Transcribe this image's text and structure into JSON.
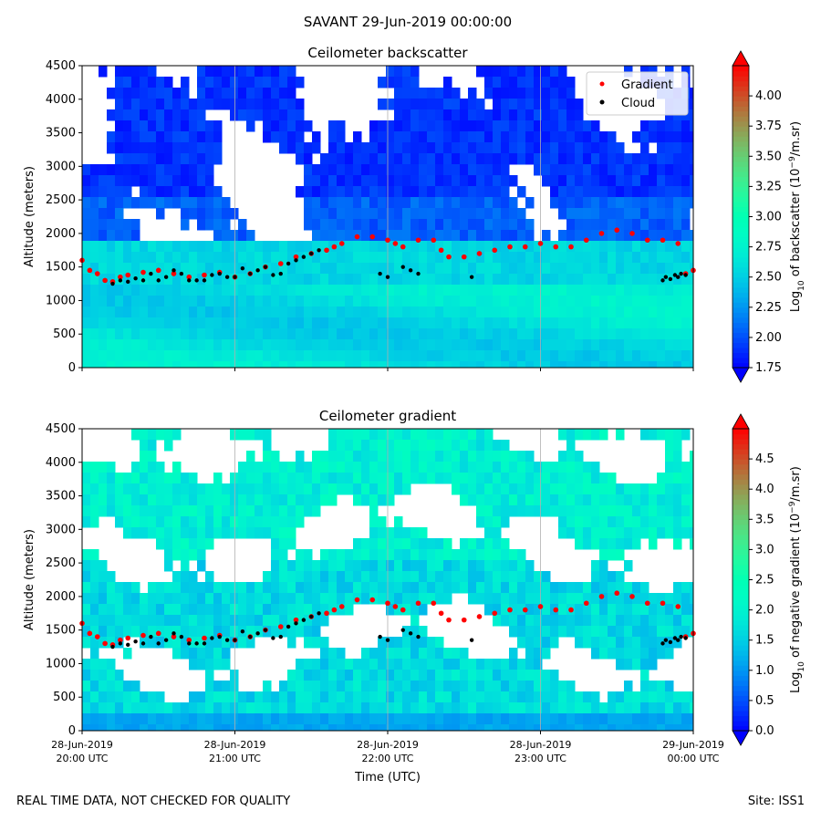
{
  "figure": {
    "suptitle": "SAVANT 29-Jun-2019 00:00:00",
    "footer_left": "REAL TIME DATA, NOT CHECKED FOR QUALITY",
    "footer_right": "Site: ISS1"
  },
  "chart_data": [
    {
      "type": "heatmap",
      "title": "Ceilometer backscatter",
      "ylabel": "Altitude (meters)",
      "xlabel": "",
      "ylim": [
        0,
        4500
      ],
      "yticks": [
        0,
        500,
        1000,
        1500,
        2000,
        2500,
        3000,
        3500,
        4000,
        4500
      ],
      "xlim_hours": [
        20,
        24
      ],
      "xticks_hours": [
        20,
        21,
        22,
        23,
        24
      ],
      "xtick_labels": [],
      "vertical_grid": true,
      "colormap": "rainbow",
      "colorbar": {
        "label_parts": [
          "Log",
          "10",
          " of backscatter (10",
          "−9",
          "/m.sr)"
        ],
        "range": [
          1.75,
          4.25
        ],
        "ticks": [
          1.75,
          2.0,
          2.25,
          2.5,
          2.75,
          3.0,
          3.25,
          3.5,
          3.75,
          4.0
        ],
        "tick_labels": [
          "1.75",
          "2.00",
          "2.25",
          "2.50",
          "2.75",
          "3.00",
          "3.25",
          "3.50",
          "3.75",
          "4.00"
        ],
        "extend": "both"
      },
      "legend": {
        "position": "top-right",
        "entries": [
          {
            "name": "Gradient",
            "color": "#ff0000",
            "marker": "dot"
          },
          {
            "name": "Cloud",
            "color": "#000000",
            "marker": "dot"
          }
        ]
      },
      "series": [
        {
          "name": "Gradient",
          "color": "#ff0000",
          "x_hours": [
            20.0,
            20.05,
            20.1,
            20.15,
            20.2,
            20.25,
            20.3,
            20.4,
            20.5,
            20.6,
            20.7,
            20.8,
            20.9,
            21.0,
            21.1,
            21.2,
            21.3,
            21.4,
            21.5,
            21.6,
            21.65,
            21.7,
            21.8,
            21.9,
            22.0,
            22.05,
            22.1,
            22.2,
            22.3,
            22.35,
            22.4,
            22.5,
            22.6,
            22.7,
            22.8,
            22.9,
            23.0,
            23.1,
            23.2,
            23.3,
            23.4,
            23.5,
            23.6,
            23.7,
            23.8,
            23.9,
            23.95,
            24.0
          ],
          "y_m": [
            1600,
            1450,
            1400,
            1300,
            1280,
            1350,
            1380,
            1420,
            1450,
            1400,
            1350,
            1380,
            1420,
            1350,
            1400,
            1500,
            1550,
            1650,
            1700,
            1750,
            1800,
            1850,
            1950,
            1950,
            1900,
            1850,
            1800,
            1900,
            1900,
            1750,
            1650,
            1650,
            1700,
            1750,
            1800,
            1800,
            1850,
            1800,
            1800,
            1900,
            2000,
            2050,
            2000,
            1900,
            1900,
            1850,
            1400,
            1450
          ]
        },
        {
          "name": "Cloud",
          "color": "#000000",
          "x_hours": [
            20.2,
            20.25,
            20.3,
            20.35,
            20.4,
            20.45,
            20.5,
            20.55,
            20.6,
            20.65,
            20.7,
            20.75,
            20.8,
            20.85,
            20.9,
            20.95,
            21.0,
            21.05,
            21.1,
            21.15,
            21.2,
            21.25,
            21.3,
            21.35,
            21.4,
            21.45,
            21.5,
            21.55,
            21.95,
            22.0,
            22.1,
            22.15,
            22.2,
            22.55,
            23.8,
            23.82,
            23.85,
            23.88,
            23.9,
            23.92,
            23.95
          ],
          "y_m": [
            1250,
            1300,
            1280,
            1330,
            1300,
            1400,
            1300,
            1350,
            1450,
            1400,
            1300,
            1300,
            1300,
            1380,
            1400,
            1350,
            1350,
            1480,
            1400,
            1450,
            1500,
            1380,
            1400,
            1550,
            1600,
            1650,
            1700,
            1750,
            1400,
            1350,
            1500,
            1450,
            1400,
            1350,
            1300,
            1350,
            1320,
            1380,
            1350,
            1400,
            1380
          ]
        }
      ]
    },
    {
      "type": "heatmap",
      "title": "Ceilometer gradient",
      "ylabel": "Altitude (meters)",
      "xlabel": "Time (UTC)",
      "ylim": [
        0,
        4500
      ],
      "yticks": [
        0,
        500,
        1000,
        1500,
        2000,
        2500,
        3000,
        3500,
        4000,
        4500
      ],
      "xlim_hours": [
        20,
        24
      ],
      "xticks_hours": [
        20,
        21,
        22,
        23,
        24
      ],
      "xtick_labels": [
        [
          "28-Jun-2019",
          "20:00 UTC"
        ],
        [
          "28-Jun-2019",
          "21:00 UTC"
        ],
        [
          "28-Jun-2019",
          "22:00 UTC"
        ],
        [
          "28-Jun-2019",
          "23:00 UTC"
        ],
        [
          "29-Jun-2019",
          "00:00 UTC"
        ]
      ],
      "vertical_grid": true,
      "colormap": "rainbow",
      "colorbar": {
        "label_parts": [
          "Log",
          "10",
          " of negative gradient (10",
          "−9",
          "/m.sr)"
        ],
        "range": [
          0,
          5
        ],
        "ticks": [
          0.0,
          0.5,
          1.0,
          1.5,
          2.0,
          2.5,
          3.0,
          3.5,
          4.0,
          4.5
        ],
        "tick_labels": [
          "0.0",
          "0.5",
          "1.0",
          "1.5",
          "2.0",
          "2.5",
          "3.0",
          "3.5",
          "4.0",
          "4.5"
        ],
        "extend": "both"
      },
      "series": [
        {
          "name": "Gradient",
          "color": "#ff0000",
          "x_hours": [
            20.0,
            20.05,
            20.1,
            20.15,
            20.2,
            20.25,
            20.3,
            20.4,
            20.5,
            20.6,
            20.7,
            20.8,
            20.9,
            21.0,
            21.1,
            21.2,
            21.3,
            21.4,
            21.5,
            21.6,
            21.65,
            21.7,
            21.8,
            21.9,
            22.0,
            22.05,
            22.1,
            22.2,
            22.3,
            22.35,
            22.4,
            22.5,
            22.6,
            22.7,
            22.8,
            22.9,
            23.0,
            23.1,
            23.2,
            23.3,
            23.4,
            23.5,
            23.6,
            23.7,
            23.8,
            23.9,
            23.95,
            24.0
          ],
          "y_m": [
            1600,
            1450,
            1400,
            1300,
            1280,
            1350,
            1380,
            1420,
            1450,
            1400,
            1350,
            1380,
            1420,
            1350,
            1400,
            1500,
            1550,
            1650,
            1700,
            1750,
            1800,
            1850,
            1950,
            1950,
            1900,
            1850,
            1800,
            1900,
            1900,
            1750,
            1650,
            1650,
            1700,
            1750,
            1800,
            1800,
            1850,
            1800,
            1800,
            1900,
            2000,
            2050,
            2000,
            1900,
            1900,
            1850,
            1400,
            1450
          ]
        },
        {
          "name": "Cloud",
          "color": "#000000",
          "x_hours": [
            20.2,
            20.25,
            20.3,
            20.35,
            20.4,
            20.45,
            20.5,
            20.55,
            20.6,
            20.65,
            20.7,
            20.75,
            20.8,
            20.85,
            20.9,
            20.95,
            21.0,
            21.05,
            21.1,
            21.15,
            21.2,
            21.25,
            21.3,
            21.35,
            21.4,
            21.45,
            21.5,
            21.55,
            21.95,
            22.0,
            22.1,
            22.15,
            22.2,
            22.55,
            23.8,
            23.82,
            23.85,
            23.88,
            23.9,
            23.92,
            23.95
          ],
          "y_m": [
            1250,
            1300,
            1280,
            1330,
            1300,
            1400,
            1300,
            1350,
            1450,
            1400,
            1300,
            1300,
            1300,
            1380,
            1400,
            1350,
            1350,
            1480,
            1400,
            1450,
            1500,
            1380,
            1400,
            1550,
            1600,
            1650,
            1700,
            1750,
            1400,
            1350,
            1500,
            1450,
            1400,
            1350,
            1300,
            1350,
            1320,
            1380,
            1350,
            1400,
            1380
          ]
        }
      ]
    }
  ]
}
